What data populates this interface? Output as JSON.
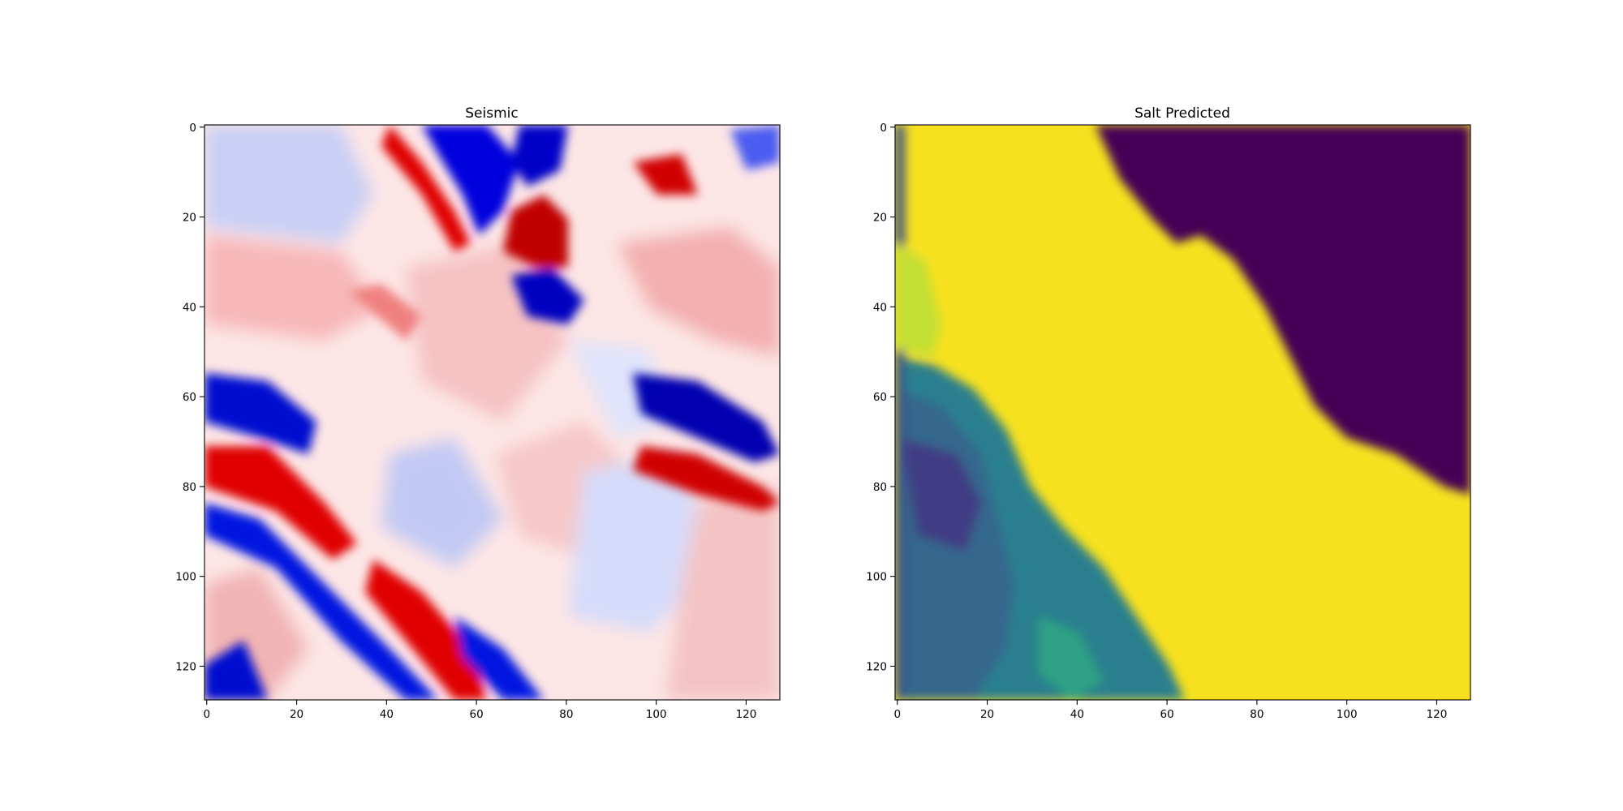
{
  "chart_data": [
    {
      "type": "heatmap",
      "title": "Seismic",
      "colormap": "seismic",
      "colormap_colors": [
        "#00004c",
        "#0000ff",
        "#ffffff",
        "#ff0000",
        "#800000"
      ],
      "grid_size": 128,
      "xlim": [
        0,
        127
      ],
      "ylim": [
        127,
        0
      ],
      "y_inverted": true,
      "xticks": [
        0,
        20,
        40,
        60,
        80,
        100,
        120
      ],
      "yticks": [
        0,
        20,
        40,
        60,
        80,
        100,
        120
      ],
      "xtick_labels": [
        "0",
        "20",
        "40",
        "60",
        "80",
        "100",
        "120"
      ],
      "ytick_labels": [
        "0",
        "20",
        "40",
        "60",
        "80",
        "100",
        "120"
      ],
      "xlabel": "",
      "ylabel": "",
      "grid": false
    },
    {
      "type": "heatmap",
      "title": "Salt Predicted",
      "colormap": "viridis",
      "colormap_colors": [
        "#440154",
        "#3b528b",
        "#21908d",
        "#5dc963",
        "#fde725"
      ],
      "grid_size": 128,
      "xlim": [
        0,
        127
      ],
      "ylim": [
        127,
        0
      ],
      "y_inverted": true,
      "xticks": [
        0,
        20,
        40,
        60,
        80,
        100,
        120
      ],
      "yticks": [
        0,
        20,
        40,
        60,
        80,
        100,
        120
      ],
      "xtick_labels": [
        "0",
        "20",
        "40",
        "60",
        "80",
        "100",
        "120"
      ],
      "ytick_labels": [
        "0",
        "20",
        "40",
        "60",
        "80",
        "100",
        "120"
      ],
      "xlabel": "",
      "ylabel": "",
      "grid": false
    }
  ]
}
